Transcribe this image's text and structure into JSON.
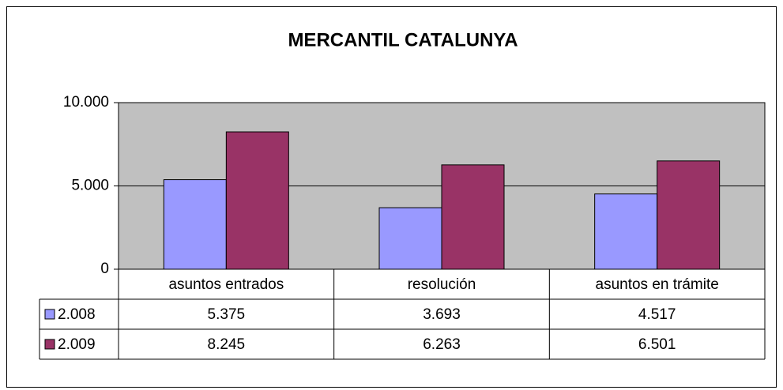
{
  "chart_data": {
    "type": "bar",
    "title": "MERCANTIL CATALUNYA",
    "categories": [
      "asuntos entrados",
      "resolución",
      "asuntos en trámite"
    ],
    "series": [
      {
        "name": "2.008",
        "color": "#9999ff",
        "values": [
          5375,
          3693,
          4517
        ],
        "value_labels": [
          "5.375",
          "3.693",
          "4.517"
        ]
      },
      {
        "name": "2.009",
        "color": "#993366",
        "values": [
          8245,
          6263,
          6501
        ],
        "value_labels": [
          "8.245",
          "6.263",
          "6.501"
        ]
      }
    ],
    "ylim": [
      0,
      10000
    ],
    "yticks": [
      0,
      {
        "value": 5000,
        "label": "5.000"
      },
      {
        "value": 10000,
        "label": "10.000"
      }
    ],
    "grid": true,
    "plot_background": "#c0c0c0"
  }
}
